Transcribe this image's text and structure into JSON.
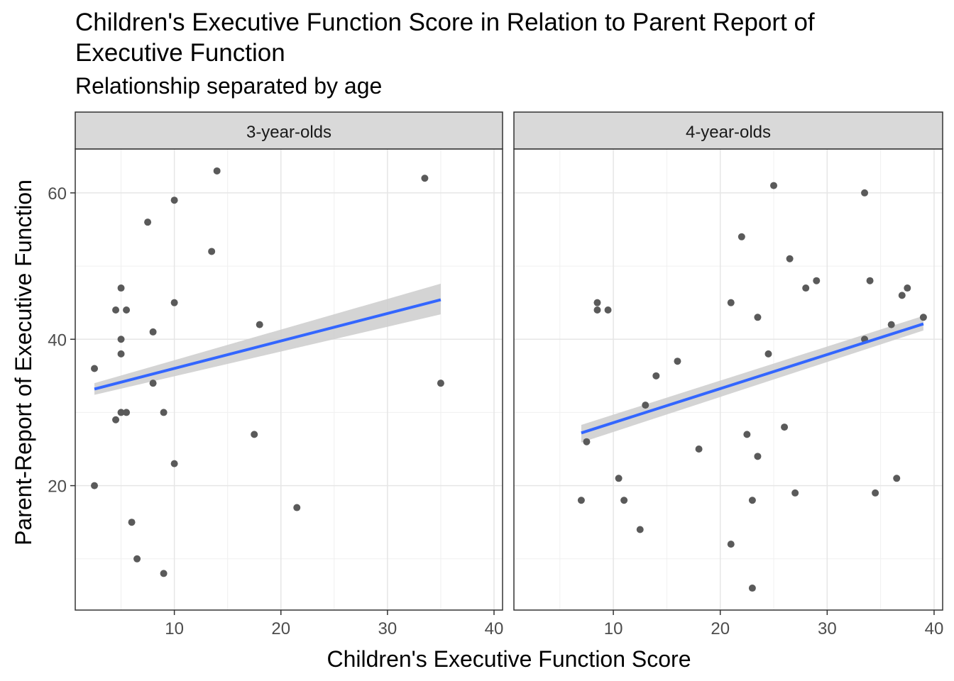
{
  "chart_data": {
    "type": "scatter",
    "title": "Children's Executive Function Score in Relation to Parent Report of Executive Function",
    "subtitle": "Relationship separated by age",
    "xlabel": "Children's Executive Function Score",
    "ylabel": "Parent-Report of Executive Function",
    "xlim": [
      0.7,
      40.8
    ],
    "ylim": [
      3,
      66
    ],
    "xticks": [
      10,
      20,
      30,
      40
    ],
    "yticks": [
      20,
      40,
      60
    ],
    "grid": true,
    "point_color": "#5a5a5a",
    "line_color": "#3366ff",
    "band_color": "#cccccc",
    "panels": [
      {
        "label": "3-year-olds",
        "points": [
          [
            2.5,
            36
          ],
          [
            2.5,
            20
          ],
          [
            4.5,
            44
          ],
          [
            4.5,
            29
          ],
          [
            5,
            47
          ],
          [
            5,
            40
          ],
          [
            5,
            38
          ],
          [
            5,
            30
          ],
          [
            5.5,
            44
          ],
          [
            5.5,
            30
          ],
          [
            6,
            15
          ],
          [
            6.5,
            10
          ],
          [
            7.5,
            56
          ],
          [
            8,
            41
          ],
          [
            8,
            34
          ],
          [
            9,
            30
          ],
          [
            9,
            8
          ],
          [
            10,
            59
          ],
          [
            10,
            45
          ],
          [
            10,
            23
          ],
          [
            13.5,
            52
          ],
          [
            14,
            63
          ],
          [
            17.5,
            27
          ],
          [
            18,
            42
          ],
          [
            21.5,
            17
          ],
          [
            33.5,
            62
          ],
          [
            35,
            34
          ]
        ],
        "fit": {
          "x": [
            2.5,
            35
          ],
          "y": [
            33.2,
            45.4
          ],
          "ci_low": [
            32.4,
            43.4
          ],
          "ci_high": [
            34.0,
            47.6
          ]
        }
      },
      {
        "label": "4-year-olds",
        "points": [
          [
            7,
            18
          ],
          [
            7.5,
            26
          ],
          [
            8.5,
            45
          ],
          [
            8.5,
            44
          ],
          [
            9.5,
            44
          ],
          [
            10.5,
            21
          ],
          [
            11,
            18
          ],
          [
            12.5,
            14
          ],
          [
            13,
            31
          ],
          [
            14,
            35
          ],
          [
            16,
            37
          ],
          [
            18,
            25
          ],
          [
            21,
            45
          ],
          [
            21,
            12
          ],
          [
            22,
            54
          ],
          [
            22.5,
            27
          ],
          [
            23,
            18
          ],
          [
            23,
            6
          ],
          [
            23.5,
            43
          ],
          [
            23.5,
            24
          ],
          [
            24.5,
            38
          ],
          [
            25,
            61
          ],
          [
            26,
            28
          ],
          [
            26.5,
            51
          ],
          [
            27,
            19
          ],
          [
            28,
            47
          ],
          [
            29,
            48
          ],
          [
            33.5,
            60
          ],
          [
            33.5,
            40
          ],
          [
            34,
            48
          ],
          [
            34.5,
            19
          ],
          [
            36,
            42
          ],
          [
            36.5,
            21
          ],
          [
            37,
            46
          ],
          [
            37.5,
            47
          ],
          [
            39,
            43
          ]
        ],
        "fit": {
          "x": [
            7,
            39
          ],
          "y": [
            27.2,
            42.1
          ],
          "ci_low": [
            25.9,
            41.2
          ],
          "ci_high": [
            28.3,
            43.2
          ]
        }
      }
    ]
  }
}
